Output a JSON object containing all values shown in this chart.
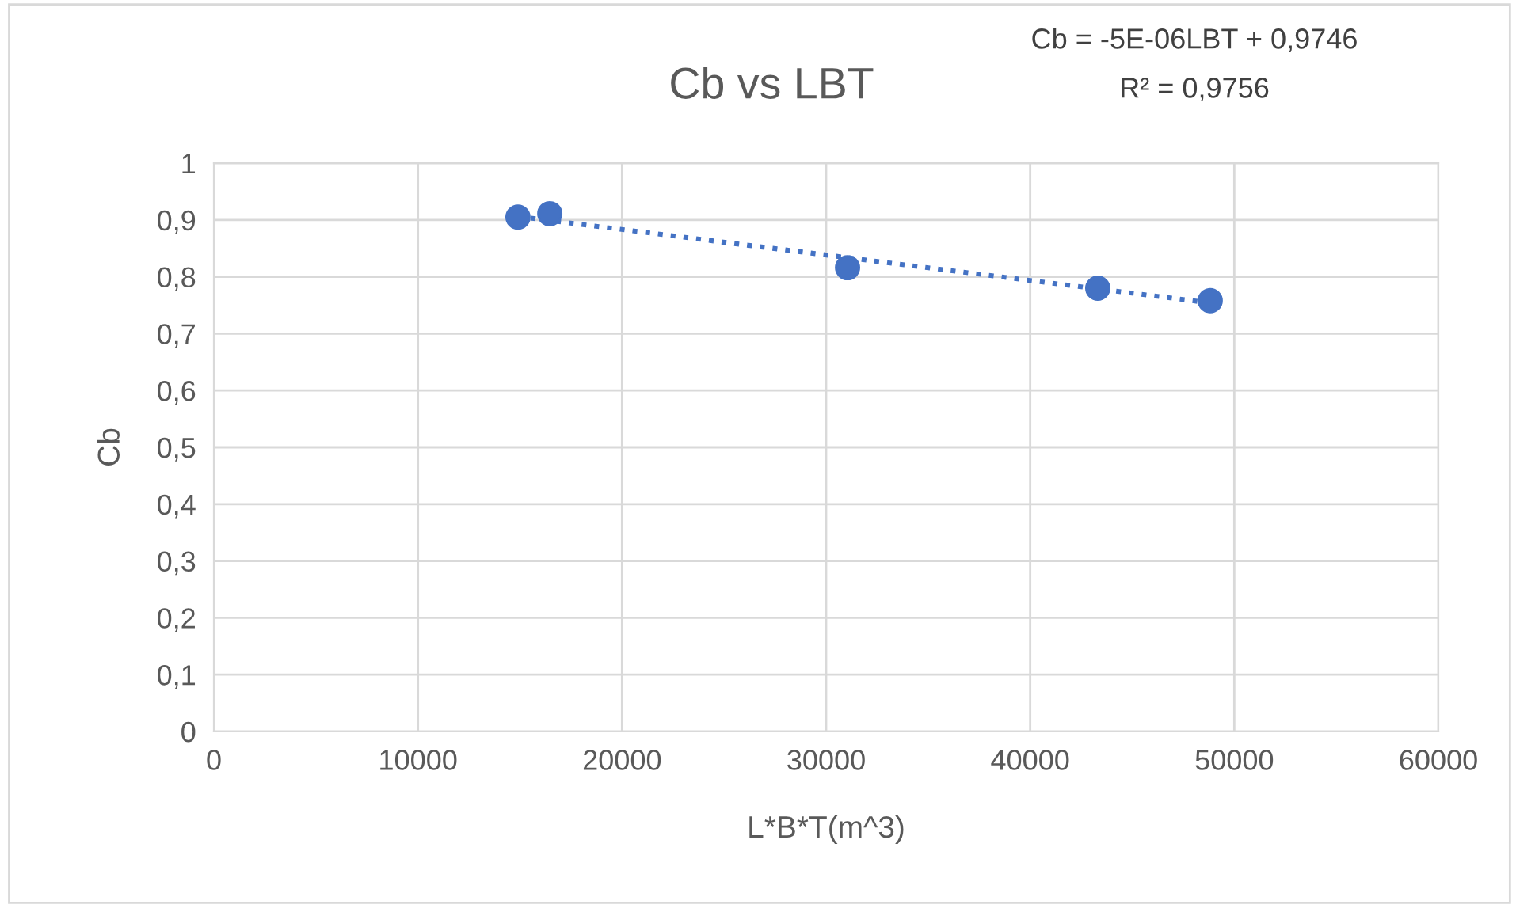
{
  "chart_data": {
    "type": "scatter",
    "title": "Cb vs LBT",
    "xlabel": "L*B*T(m^3)",
    "ylabel": "Cb",
    "annotations": [
      "Cb = -5E-06LBT + 0,9746",
      "R² = 0,9756"
    ],
    "series": [
      {
        "color": "#4472c4",
        "marker": "circle",
        "x": [
          14900,
          16460,
          31050,
          43310,
          48820
        ],
        "values": [
          0.905,
          0.911,
          0.816,
          0.78,
          0.758
        ]
      },
      {
        "type": "line",
        "color": "#4472c4",
        "marker": "none",
        "line_style": "dotted",
        "x": [
          14900,
          48820
        ],
        "values": [
          0.906,
          0.754
        ]
      }
    ],
    "xlim": [
      0,
      60000
    ],
    "xticks": [
      0,
      10000,
      20000,
      30000,
      40000,
      50000,
      60000
    ],
    "ylim": [
      0,
      1
    ],
    "yticks": [
      0,
      {
        "value": 0.1,
        "label": "0,1"
      },
      {
        "value": 0.2,
        "label": "0,2"
      },
      {
        "value": 0.3,
        "label": "0,3"
      },
      {
        "value": 0.4,
        "label": "0,4"
      },
      {
        "value": 0.5,
        "label": "0,5"
      },
      {
        "value": 0.6,
        "label": "0,6"
      },
      {
        "value": 0.7,
        "label": "0,7"
      },
      {
        "value": 0.8,
        "label": "0,8"
      },
      {
        "value": 0.9,
        "label": "0,9"
      },
      1
    ],
    "grid": true,
    "legend": false
  }
}
